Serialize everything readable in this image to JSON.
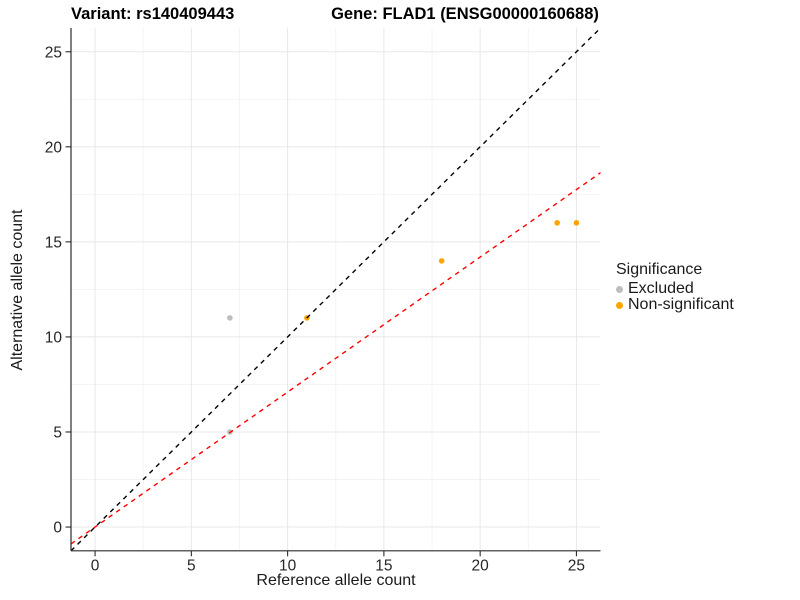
{
  "chart_data": {
    "type": "scatter",
    "title_left": "Variant: rs140409443",
    "title_right": "Gene: FLAD1 (ENSG00000160688)",
    "xlabel": "Reference allele count",
    "ylabel": "Alternative allele count",
    "xlim": [
      -1.25,
      26.25
    ],
    "ylim": [
      -1.25,
      26.25
    ],
    "x_ticks": [
      0,
      5,
      10,
      15,
      20,
      25
    ],
    "y_ticks": [
      0,
      5,
      10,
      15,
      20,
      25
    ],
    "x_minor_ticks": [
      2.5,
      7.5,
      12.5,
      17.5,
      22.5
    ],
    "y_minor_ticks": [
      2.5,
      7.5,
      12.5,
      17.5,
      22.5
    ],
    "grid": "on",
    "colors": {
      "major_grid": "#e8e8e8",
      "minor_grid": "#f3f3f3",
      "axis_line": "#2b2b2b",
      "excluded": "#bebebe",
      "non_significant": "#ffa500",
      "identity_line": "#000000",
      "ratio_line": "#ff0000"
    },
    "series": [
      {
        "name": "Excluded",
        "color": "#bebebe",
        "points": [
          {
            "x": 7,
            "y": 11
          },
          {
            "x": 7,
            "y": 5
          }
        ]
      },
      {
        "name": "Non-significant",
        "color": "#ffa500",
        "points": [
          {
            "x": 11,
            "y": 11
          },
          {
            "x": 18,
            "y": 14
          },
          {
            "x": 24,
            "y": 16
          },
          {
            "x": 25,
            "y": 16
          }
        ]
      }
    ],
    "lines": [
      {
        "name": "identity-line",
        "color": "#000000",
        "style": "dashed",
        "slope": 1.0,
        "intercept": 0
      },
      {
        "name": "ratio-line",
        "color": "#ff0000",
        "style": "dashed",
        "slope": 0.71,
        "intercept": 0
      }
    ],
    "legend": {
      "title": "Significance",
      "position": "right",
      "items": [
        {
          "label": "Excluded",
          "color": "#bebebe"
        },
        {
          "label": "Non-significant",
          "color": "#ffa500"
        }
      ]
    }
  }
}
